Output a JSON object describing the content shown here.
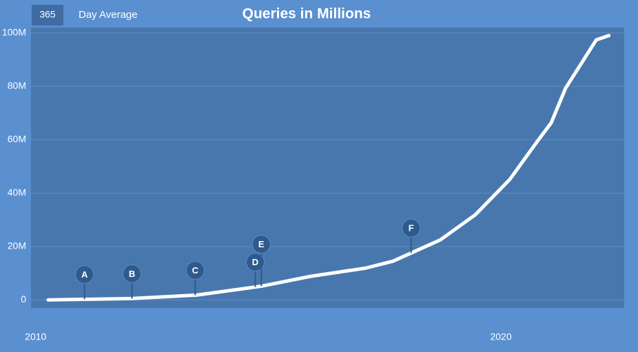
{
  "chart_data": {
    "type": "line",
    "title": "Queries in Millions",
    "period": "365",
    "period_label": "Day Average",
    "x": [
      2010.27,
      2012.05,
      2013.46,
      2014.42,
      2014.87,
      2015.9,
      2017.09,
      2017.68,
      2018.7,
      2019.45,
      2020.19,
      2020.8,
      2021.08,
      2021.39,
      2022.05,
      2022.32
    ],
    "series": [
      {
        "name": "Queries",
        "color": "#ffffff",
        "values": [
          0,
          0.5,
          1.8,
          4.1,
          5.2,
          8.8,
          11.9,
          14.5,
          22.5,
          31.9,
          45.1,
          59.8,
          66.3,
          79.3,
          97.4,
          99
        ]
      }
    ],
    "xlim": [
      2009.9,
      2022.65
    ],
    "xticks": [
      2010,
      2020
    ],
    "ylim": [
      -3,
      102
    ],
    "yticks": [
      0,
      {
        "value": 20,
        "label": "20M"
      },
      {
        "value": 40,
        "label": "40M"
      },
      {
        "value": 60,
        "label": "60M"
      },
      {
        "value": 80,
        "label": "80M"
      },
      {
        "value": 100,
        "label": "100M"
      }
    ],
    "grid": true,
    "annotations": [
      {
        "label": "A",
        "x": 2011.05
      },
      {
        "label": "B",
        "x": 2012.07
      },
      {
        "label": "C",
        "x": 2013.43
      },
      {
        "label": "D",
        "x": 2014.72
      },
      {
        "label": "E",
        "x": 2014.85
      },
      {
        "label": "F",
        "x": 2018.07
      }
    ]
  }
}
